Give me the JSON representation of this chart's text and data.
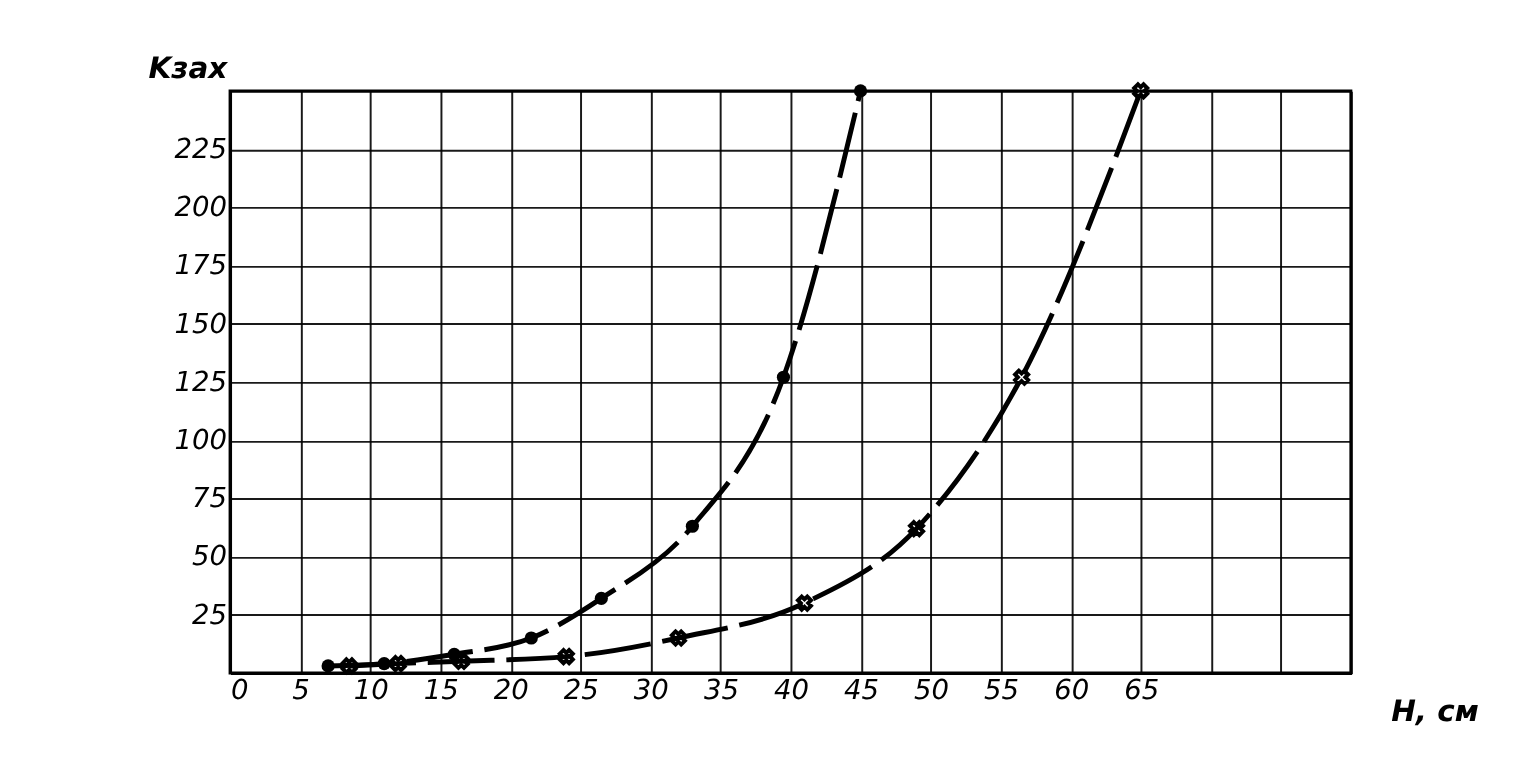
{
  "chart_data": {
    "type": "line",
    "xlabel": "H, см",
    "ylabel": "Kзах",
    "xlim": [
      0,
      80
    ],
    "ylim": [
      0,
      250
    ],
    "xticks": [
      0,
      5,
      10,
      15,
      20,
      25,
      30,
      35,
      40,
      45,
      50,
      55,
      60,
      65,
      {
        "value": 70,
        "label": null
      },
      {
        "value": 75,
        "label": null
      },
      {
        "value": 80,
        "label": null
      }
    ],
    "yticks": [
      {
        "value": 0,
        "label": null
      },
      25,
      50,
      75,
      100,
      125,
      150,
      175,
      200,
      225,
      {
        "value": 250,
        "label": null
      }
    ],
    "grid": true,
    "series": [
      {
        "color": "#000000",
        "marker": "circle",
        "line_style": "dashed",
        "x": [
          7,
          11,
          16,
          21.5,
          26.5,
          33,
          39.5,
          45
        ],
        "values": [
          3,
          4,
          8,
          15,
          32,
          63,
          127,
          250
        ]
      },
      {
        "color": "#000000",
        "marker": "cross",
        "line_style": "dashed",
        "x": [
          8.5,
          12,
          16.5,
          24,
          32,
          41,
          49,
          56.5,
          65
        ],
        "values": [
          3,
          4,
          5,
          7,
          15,
          30,
          62,
          127,
          250
        ]
      }
    ]
  }
}
